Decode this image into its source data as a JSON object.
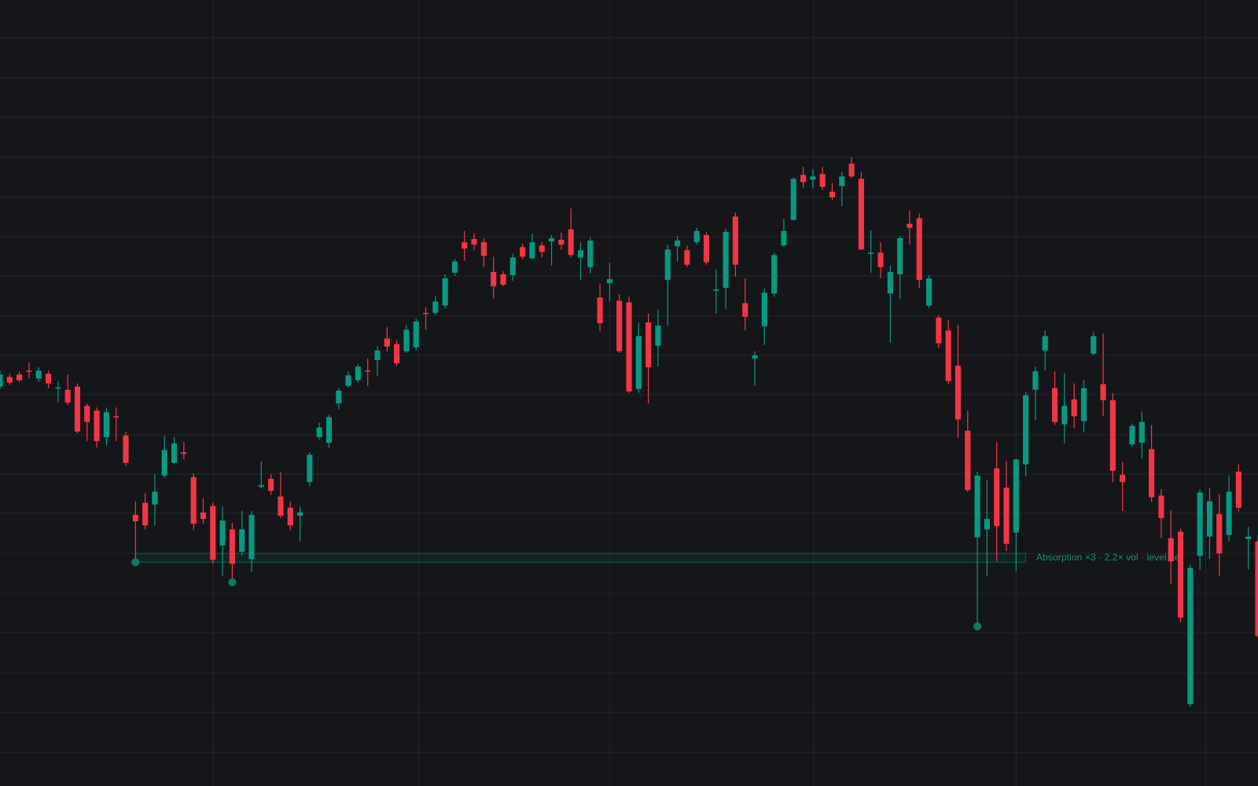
{
  "chart_data": {
    "type": "candlestick",
    "up_color": "#089981",
    "down_color": "#f23645",
    "open": [
      518,
      530,
      533,
      538,
      528,
      534,
      516,
      514,
      518,
      494,
      488,
      455,
      481,
      457,
      358,
      373,
      371,
      407,
      423,
      436,
      405,
      361,
      369,
      320,
      340,
      312,
      303,
      393,
      403,
      381,
      367,
      357,
      399,
      455,
      448,
      497,
      519,
      526,
      538,
      551,
      578,
      571,
      562,
      567,
      610,
      610,
      619,
      660,
      698,
      702,
      698,
      661,
      658,
      657,
      692,
      678,
      694,
      699,
      701,
      714,
      679,
      667,
      629,
      647,
      625,
      623,
      515,
      598,
      569,
      651,
      693,
      688,
      698,
      707,
      638,
      641,
      730,
      622,
      553,
      593,
      634,
      694,
      726,
      782,
      776,
      783,
      761,
      768,
      796,
      777,
      684,
      685,
      634,
      658,
      721,
      728,
      619,
      604,
      588,
      544,
      463,
      330,
      340,
      416,
      392,
      336,
      421,
      514,
      563,
      516,
      471,
      502,
      475,
      559,
      521,
      501,
      408,
      446,
      448,
      440,
      382,
      329,
      337,
      122,
      307,
      331,
      359,
      333,
      412,
      328,
      325
    ],
    "high": [
      538,
      534,
      537,
      548,
      542,
      538,
      525,
      533,
      522,
      497,
      492,
      492,
      492,
      462,
      375,
      385,
      409,
      457,
      455,
      449,
      410,
      379,
      373,
      368,
      348,
      363,
      363,
      425,
      409,
      411,
      375,
      369,
      436,
      473,
      483,
      516,
      537,
      546,
      553,
      568,
      592,
      576,
      595,
      603,
      617,
      631,
      658,
      677,
      712,
      709,
      703,
      680,
      662,
      684,
      696,
      709,
      698,
      707,
      710,
      740,
      698,
      704,
      646,
      672,
      633,
      630,
      598,
      609,
      614,
      695,
      706,
      694,
      716,
      711,
      664,
      715,
      735,
      653,
      562,
      640,
      685,
      727,
      779,
      792,
      789,
      792,
      772,
      786,
      804,
      786,
      713,
      698,
      669,
      706,
      737,
      734,
      657,
      607,
      601,
      595,
      488,
      412,
      401,
      449,
      425,
      428,
      511,
      543,
      588,
      537,
      535,
      522,
      526,
      586,
      584,
      510,
      424,
      472,
      487,
      470,
      390,
      364,
      341,
      296,
      390,
      392,
      384,
      407,
      421,
      343,
      332
    ],
    "low": [
      515,
      520,
      524,
      528,
      524,
      516,
      498,
      495,
      460,
      450,
      442,
      444,
      450,
      419,
      299,
      340,
      345,
      404,
      421,
      427,
      339,
      347,
      297,
      282,
      274,
      307,
      287,
      391,
      383,
      354,
      339,
      325,
      394,
      452,
      441,
      490,
      517,
      523,
      519,
      531,
      562,
      544,
      560,
      563,
      589,
      607,
      615,
      656,
      675,
      688,
      667,
      628,
      643,
      650,
      677,
      676,
      679,
      669,
      689,
      679,
      651,
      659,
      587,
      624,
      560,
      510,
      510,
      497,
      543,
      594,
      674,
      667,
      695,
      670,
      609,
      615,
      655,
      588,
      519,
      570,
      630,
      692,
      725,
      766,
      765,
      763,
      751,
      743,
      778,
      688,
      660,
      653,
      573,
      627,
      695,
      641,
      616,
      566,
      521,
      454,
      387,
      219,
      282,
      300,
      313,
      288,
      406,
      476,
      538,
      470,
      447,
      466,
      461,
      557,
      481,
      399,
      363,
      443,
      428,
      374,
      329,
      272,
      224,
      119,
      290,
      303,
      282,
      325,
      363,
      290,
      205
    ],
    "close": [
      533,
      523,
      526,
      537,
      538,
      522,
      517,
      498,
      462,
      474,
      450,
      486,
      480,
      423,
      350,
      345,
      387,
      439,
      447,
      434,
      347,
      353,
      302,
      351,
      297,
      340,
      358,
      395,
      388,
      357,
      345,
      361,
      433,
      467,
      480,
      513,
      532,
      543,
      537,
      563,
      568,
      547,
      589,
      599,
      609,
      624,
      653,
      674,
      690,
      695,
      681,
      643,
      645,
      679,
      680,
      698,
      686,
      703,
      695,
      682,
      688,
      700,
      597,
      652,
      562,
      512,
      581,
      542,
      594,
      689,
      700,
      670,
      712,
      673,
      639,
      711,
      670,
      605,
      557,
      635,
      682,
      712,
      777,
      773,
      780,
      767,
      754,
      780,
      780,
      689,
      685,
      667,
      661,
      703,
      716,
      651,
      653,
      572,
      525,
      477,
      389,
      407,
      353,
      344,
      322,
      427,
      507,
      537,
      581,
      474,
      494,
      481,
      516,
      581,
      501,
      413,
      399,
      469,
      474,
      380,
      354,
      300,
      230,
      292,
      386,
      375,
      310,
      387,
      367,
      331,
      207
    ],
    "xlim": [
      0,
      130
    ],
    "ylim": [
      20,
      1000
    ],
    "xticks": [
      22.06,
      43.28,
      63.0,
      84.1,
      105.0,
      124.6
    ],
    "yticks": [
      62,
      112,
      161,
      211,
      260,
      310,
      360,
      409,
      458,
      508,
      557,
      606,
      656,
      705,
      754,
      804,
      854,
      903,
      953
    ],
    "grid": true,
    "zone": {
      "from": 14,
      "to": 106,
      "low": 299,
      "high": 310,
      "label": "Absorption ×3 · 2.2× vol · level he"
    },
    "markers": [
      14,
      24,
      101
    ]
  }
}
